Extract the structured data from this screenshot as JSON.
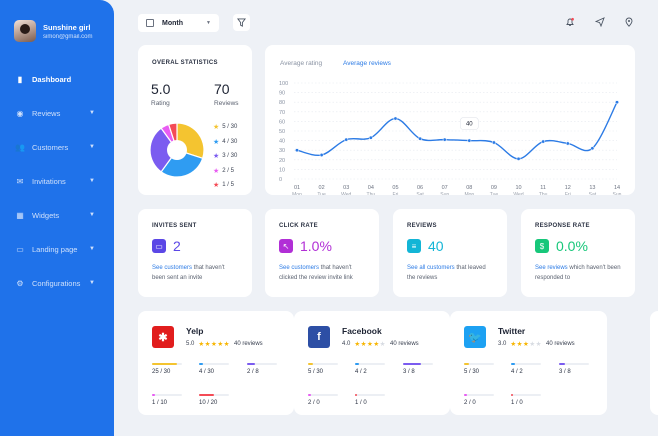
{
  "profile": {
    "name": "Sunshine girl",
    "email": "simon@gmail.com"
  },
  "nav": [
    {
      "label": "Dashboard",
      "icon": "bar-chart-icon",
      "active": true,
      "chevron": false
    },
    {
      "label": "Reviews",
      "icon": "review-icon",
      "active": false,
      "chevron": true
    },
    {
      "label": "Customers",
      "icon": "users-icon",
      "active": false,
      "chevron": true
    },
    {
      "label": "Invitations",
      "icon": "mail-icon",
      "active": false,
      "chevron": true
    },
    {
      "label": "Widgets",
      "icon": "widgets-icon",
      "active": false,
      "chevron": true
    },
    {
      "label": "Landing page",
      "icon": "page-icon",
      "active": false,
      "chevron": true
    },
    {
      "label": "Configurations",
      "icon": "gear-icon",
      "active": false,
      "chevron": true
    }
  ],
  "toolbar": {
    "period": "Month"
  },
  "overall": {
    "title": "OVERAL STATISTICS",
    "rating_value": "5.0",
    "rating_label": "Rating",
    "reviews_value": "70",
    "reviews_label": "Reviews",
    "legend": [
      {
        "label": "5 / 30",
        "color": "#f4c430"
      },
      {
        "label": "4 / 30",
        "color": "#2f9cf2"
      },
      {
        "label": "3 / 30",
        "color": "#7b5cf0"
      },
      {
        "label": "2 / 5",
        "color": "#e85cf2"
      },
      {
        "label": "1 / 5",
        "color": "#f44b56"
      }
    ],
    "pie": [
      {
        "value": 30,
        "color": "#f4c430"
      },
      {
        "value": 30,
        "color": "#2f9cf2"
      },
      {
        "value": 30,
        "color": "#7b5cf0"
      },
      {
        "value": 5,
        "color": "#e85cf2"
      },
      {
        "value": 5,
        "color": "#f44b56"
      }
    ]
  },
  "chart": {
    "tab_rating": "Average rating",
    "tab_reviews": "Average reviews",
    "tooltip": "40"
  },
  "chart_data": {
    "type": "line",
    "categories": [
      "01 Mon",
      "02 Tue",
      "03 Wed",
      "04 Thu",
      "05 Fri",
      "06 Sat",
      "07 Sun",
      "08 Mon",
      "09 Tue",
      "10 Wed",
      "11 Thu",
      "12 Fri",
      "13 Sat",
      "14 Sun"
    ],
    "x_day": [
      "01",
      "02",
      "03",
      "04",
      "05",
      "06",
      "07",
      "08",
      "09",
      "10",
      "11",
      "12",
      "13",
      "14"
    ],
    "x_weekday": [
      "Mon",
      "Tue",
      "Wed",
      "Thu",
      "Fri",
      "Sat",
      "Sun",
      "Mon",
      "Tue",
      "Wed",
      "Thu",
      "Fri",
      "Sat",
      "Sun"
    ],
    "values": [
      30,
      25,
      41,
      43,
      63,
      42,
      41,
      40,
      38,
      21,
      39,
      37,
      32,
      80
    ],
    "ylim": [
      0,
      100
    ],
    "yticks": [
      0,
      10,
      20,
      30,
      40,
      50,
      60,
      70,
      80,
      90,
      100
    ],
    "grid": true,
    "line_color": "#2c7be5",
    "highlight_index": 7
  },
  "stats": [
    {
      "title": "INVITES SENT",
      "value": "2",
      "color": "#5b47e6",
      "icon": "invite-icon",
      "link": "See customers",
      "desc": " that haven't been sent an invite"
    },
    {
      "title": "CLICK RATE",
      "value": "1.0%",
      "color": "#b12fd6",
      "icon": "cursor-icon",
      "link": "See customers",
      "desc": " that haven't clicked the review invite link"
    },
    {
      "title": "REVIEWS",
      "value": "40",
      "color": "#13b5d6",
      "icon": "comment-icon",
      "link": "See all customers",
      "desc": " that leaved the reviews"
    },
    {
      "title": "RESPONSE RATE",
      "value": "0.0%",
      "color": "#17c77a",
      "icon": "response-icon",
      "link": "See reviews",
      "desc": " which haven't been responded to"
    }
  ],
  "sources": [
    {
      "name": "Yelp",
      "rating": "5.0",
      "stars": 5,
      "reviews": "40 reviews",
      "logo_color": "#e11d1d",
      "logo_icon": "yelp-icon",
      "bars": [
        {
          "label": "25 / 30",
          "frac": 0.83,
          "color": "#f4c430"
        },
        {
          "label": "4 / 30",
          "frac": 0.13,
          "color": "#2f9cf2"
        },
        {
          "label": "2 / 8",
          "frac": 0.25,
          "color": "#7b5cf0"
        },
        {
          "label": "1 / 10",
          "frac": 0.1,
          "color": "#e85cf2"
        },
        {
          "label": "10 / 20",
          "frac": 0.5,
          "color": "#f44b56"
        }
      ]
    },
    {
      "name": "Facebook",
      "rating": "4.0",
      "stars": 4,
      "reviews": "40 reviews",
      "logo_color": "#2d4fa5",
      "logo_icon": "facebook-icon",
      "bars": [
        {
          "label": "5 / 30",
          "frac": 0.17,
          "color": "#f4c430"
        },
        {
          "label": "4 / 2",
          "frac": 0.13,
          "color": "#2f9cf2"
        },
        {
          "label": "3 / 8",
          "frac": 0.6,
          "color": "#7b5cf0"
        },
        {
          "label": "2 / 0",
          "frac": 0.1,
          "color": "#e85cf2"
        },
        {
          "label": "1 / 0",
          "frac": 0.05,
          "color": "#f44b56"
        }
      ]
    },
    {
      "name": "Twitter",
      "rating": "3.0",
      "stars": 3,
      "reviews": "40 reviews",
      "logo_color": "#1da1f2",
      "logo_icon": "twitter-icon",
      "bars": [
        {
          "label": "5 / 30",
          "frac": 0.17,
          "color": "#f4c430"
        },
        {
          "label": "4 / 2",
          "frac": 0.13,
          "color": "#2f9cf2"
        },
        {
          "label": "3 / 8",
          "frac": 0.2,
          "color": "#7b5cf0"
        },
        {
          "label": "2 / 0",
          "frac": 0.1,
          "color": "#e85cf2"
        },
        {
          "label": "1 / 0",
          "frac": 0.05,
          "color": "#f44b56"
        }
      ]
    }
  ]
}
